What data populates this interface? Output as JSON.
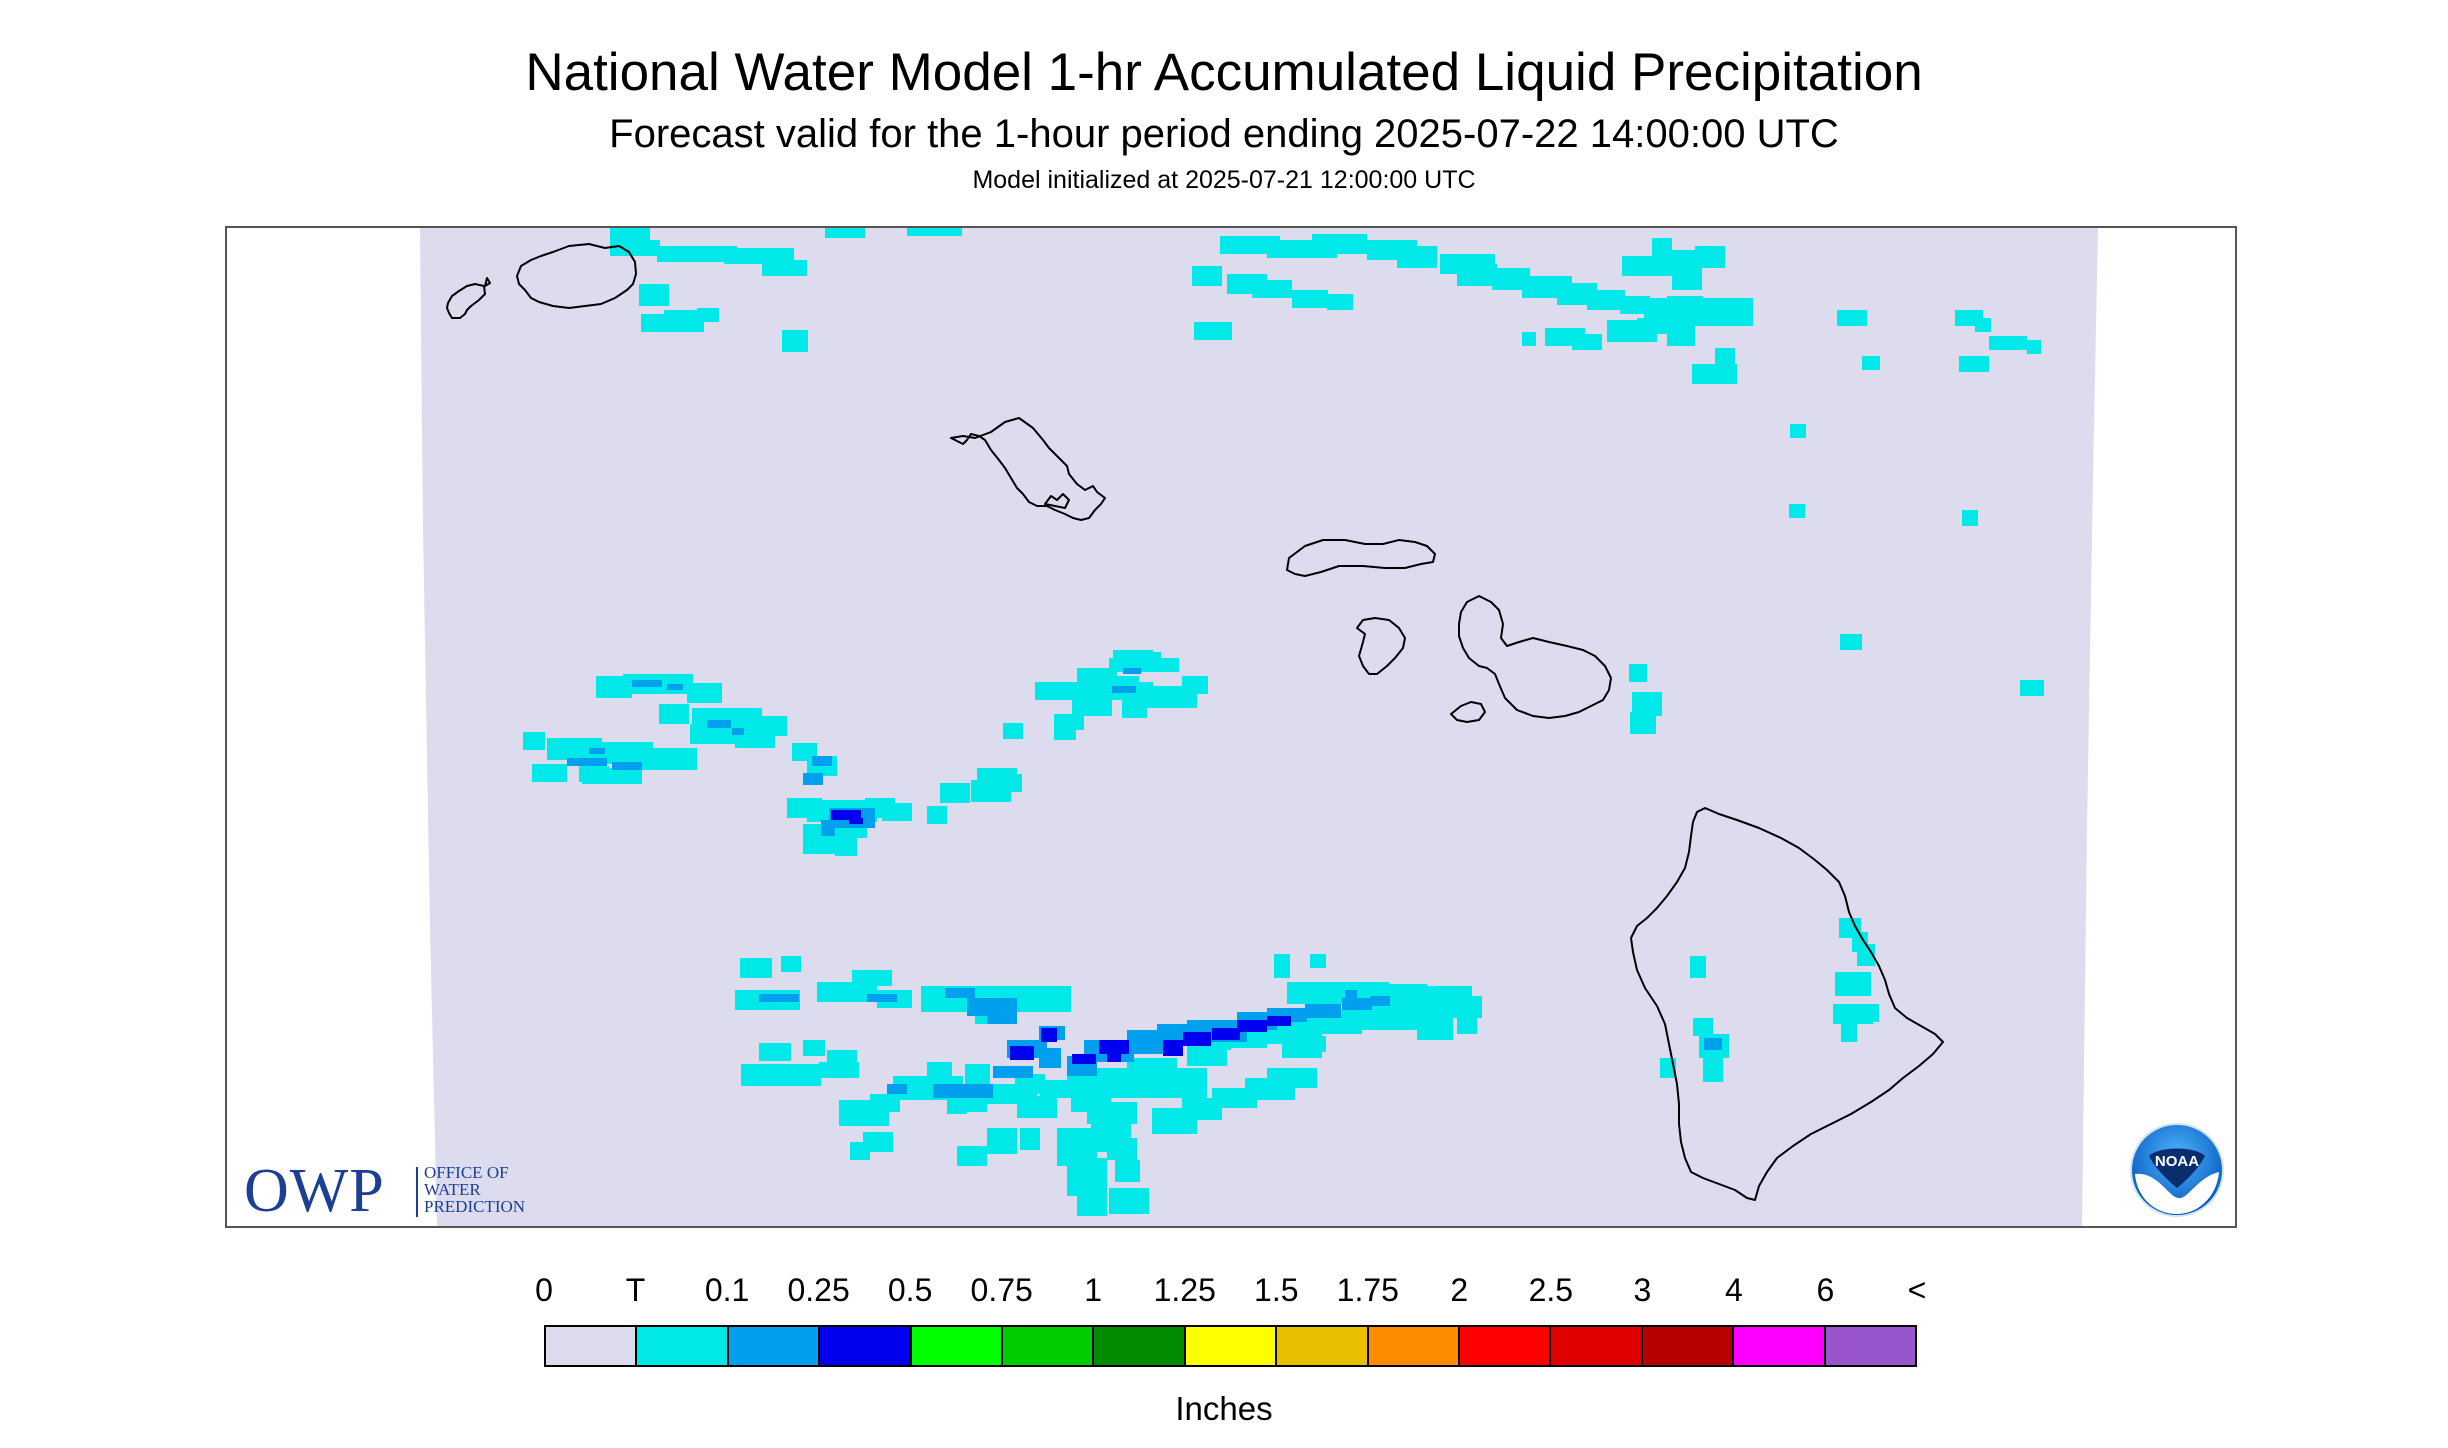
{
  "header": {
    "title": "National Water Model 1-hr Accumulated Liquid Precipitation",
    "subtitle": "Forecast valid for the 1-hour period ending 2025-07-22 14:00:00 UTC",
    "init": "Model initialized at 2025-07-21 12:00:00 UTC"
  },
  "owp_logo": {
    "abbr": "OWP",
    "line1": "OFFICE OF",
    "line2": "WATER",
    "line3": "PREDICTION"
  },
  "noaa_logo": {
    "text": "NOAA"
  },
  "legend": {
    "labels": [
      "0",
      "T",
      "0.1",
      "0.25",
      "0.5",
      "0.75",
      "1",
      "1.25",
      "1.5",
      "1.75",
      "2",
      "2.5",
      "3",
      "4",
      "6",
      "<"
    ],
    "colors": [
      "#dcdcee",
      "#00e8e8",
      "#00a0ee",
      "#0000ee",
      "#00ff00",
      "#00cd00",
      "#008b00",
      "#ffff00",
      "#e8c000",
      "#ff8c00",
      "#ff0000",
      "#e00000",
      "#b80000",
      "#ff00ff",
      "#9955cc"
    ],
    "units": "Inches"
  },
  "map": {
    "domain_fill": "#dcdcee",
    "coast_color": "#000000",
    "islands": [
      "Niihau",
      "Kauai",
      "Oahu",
      "Molokai",
      "Lanai",
      "Maui",
      "Kahoolawe",
      "Hawaii"
    ]
  }
}
